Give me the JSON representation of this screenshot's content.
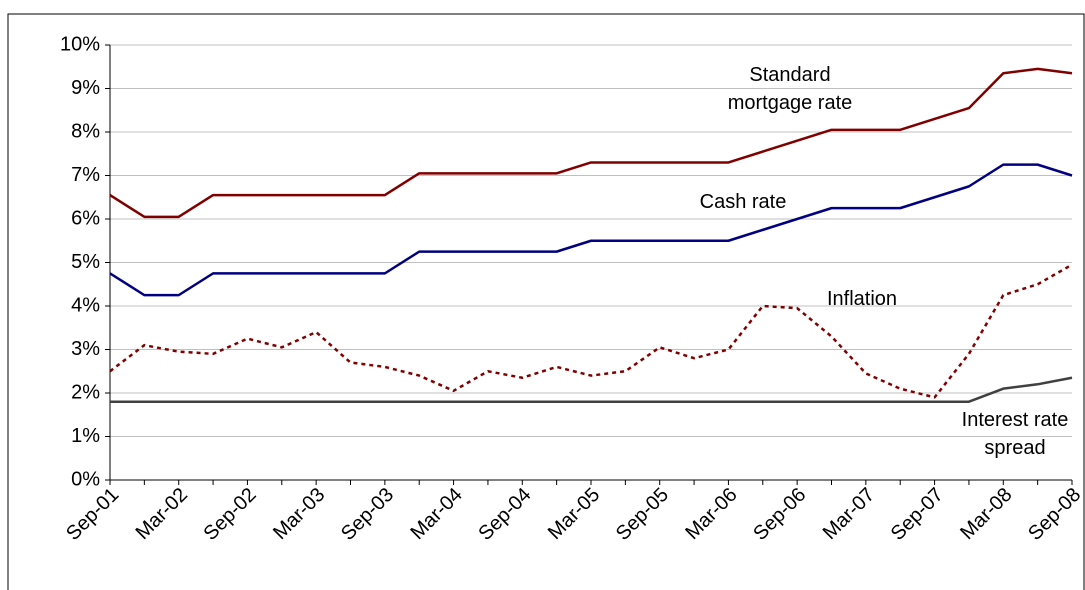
{
  "chart_data": {
    "type": "line",
    "categories": [
      "Sep-01",
      null,
      "Mar-02",
      null,
      "Sep-02",
      null,
      "Mar-03",
      null,
      "Sep-03",
      null,
      "Mar-04",
      null,
      "Sep-04",
      null,
      "Mar-05",
      null,
      "Sep-05",
      null,
      "Mar-06",
      null,
      "Sep-06",
      null,
      "Mar-07",
      null,
      "Sep-07",
      null,
      "Mar-08",
      null,
      "Sep-08"
    ],
    "series": [
      {
        "name": "Standard mortgage rate",
        "color": "#800000",
        "dash": "solid",
        "values": [
          6.55,
          6.05,
          6.05,
          6.55,
          6.55,
          6.55,
          6.55,
          6.55,
          6.55,
          7.05,
          7.05,
          7.05,
          7.05,
          7.05,
          7.3,
          7.3,
          7.3,
          7.3,
          7.3,
          7.55,
          7.8,
          8.05,
          8.05,
          8.05,
          8.3,
          8.55,
          9.35,
          9.45,
          9.35
        ]
      },
      {
        "name": "Cash rate",
        "color": "#000080",
        "dash": "solid",
        "values": [
          4.75,
          4.25,
          4.25,
          4.75,
          4.75,
          4.75,
          4.75,
          4.75,
          4.75,
          5.25,
          5.25,
          5.25,
          5.25,
          5.25,
          5.5,
          5.5,
          5.5,
          5.5,
          5.5,
          5.75,
          6.0,
          6.25,
          6.25,
          6.25,
          6.5,
          6.75,
          7.25,
          7.25,
          7.0
        ]
      },
      {
        "name": "Inflation",
        "color": "#800000",
        "dash": "dotted",
        "values": [
          2.5,
          3.1,
          2.95,
          2.9,
          3.25,
          3.05,
          3.4,
          2.7,
          2.6,
          2.4,
          2.05,
          2.5,
          2.35,
          2.6,
          2.4,
          2.5,
          3.05,
          2.8,
          3.0,
          4.0,
          3.95,
          3.3,
          2.45,
          2.1,
          1.9,
          2.9,
          4.25,
          4.5,
          4.95
        ]
      },
      {
        "name": "Interest rate spread",
        "color": "#404040",
        "dash": "solid",
        "values": [
          1.8,
          1.8,
          1.8,
          1.8,
          1.8,
          1.8,
          1.8,
          1.8,
          1.8,
          1.8,
          1.8,
          1.8,
          1.8,
          1.8,
          1.8,
          1.8,
          1.8,
          1.8,
          1.8,
          1.8,
          1.8,
          1.8,
          1.8,
          1.8,
          1.8,
          1.8,
          2.1,
          2.2,
          2.35
        ]
      }
    ],
    "annotations": [
      "Standard\nmortgage rate",
      "Cash rate",
      "Inflation",
      "Interest rate\nspread"
    ],
    "ylim": [
      0,
      10
    ],
    "yticks": [
      {
        "value": 0,
        "label": "0%"
      },
      {
        "value": 1,
        "label": "1%"
      },
      {
        "value": 2,
        "label": "2%"
      },
      {
        "value": 3,
        "label": "3%"
      },
      {
        "value": 4,
        "label": "4%"
      },
      {
        "value": 5,
        "label": "5%"
      },
      {
        "value": 6,
        "label": "6%"
      },
      {
        "value": 7,
        "label": "7%"
      },
      {
        "value": 8,
        "label": "8%"
      },
      {
        "value": 9,
        "label": "9%"
      },
      {
        "value": 10,
        "label": "10%"
      }
    ],
    "grid": true
  }
}
